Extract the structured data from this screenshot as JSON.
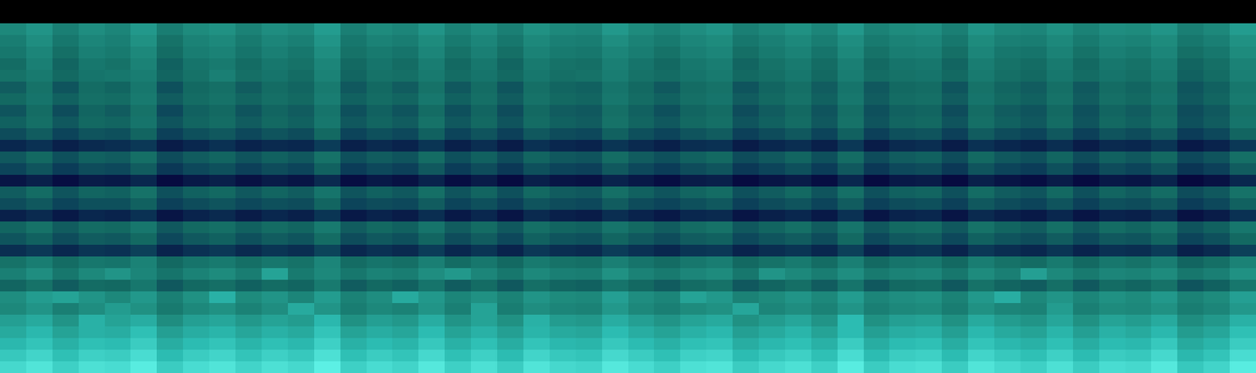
{
  "chart_data": {
    "type": "heatmap",
    "tick_labels": false,
    "grid": false,
    "cells": [
      [
        0,
        0,
        0,
        0,
        0,
        0,
        0,
        0,
        0,
        0,
        0,
        0,
        0,
        0,
        0,
        0,
        0,
        0,
        0,
        0,
        0,
        0,
        0,
        0,
        0,
        0,
        0,
        0,
        0,
        0,
        0,
        0,
        0,
        0,
        0,
        0,
        0,
        0,
        0,
        0,
        0,
        0,
        0,
        0,
        0,
        0,
        0,
        0
      ],
      [
        0,
        0,
        0,
        0,
        0,
        0,
        0,
        0,
        0,
        0,
        0,
        0,
        0,
        0,
        0,
        0,
        0,
        0,
        0,
        0,
        0,
        0,
        0,
        0,
        0,
        0,
        0,
        0,
        0,
        0,
        0,
        0,
        0,
        0,
        0,
        0,
        0,
        0,
        0,
        0,
        0,
        0,
        0,
        0,
        0,
        0,
        0,
        0
      ],
      [
        58,
        62,
        55,
        60,
        57,
        63,
        54,
        59,
        61,
        56,
        60,
        58,
        64,
        55,
        59,
        57,
        62,
        56,
        60,
        55,
        61,
        58,
        57,
        63,
        59,
        56,
        60,
        62,
        55,
        58,
        61,
        57,
        63,
        56,
        59,
        60,
        55,
        62,
        58,
        57,
        61,
        56,
        60,
        59,
        62,
        55,
        58,
        64
      ],
      [
        54,
        60,
        52,
        57,
        55,
        61,
        50,
        56,
        58,
        53,
        57,
        55,
        62,
        52,
        56,
        54,
        59,
        53,
        57,
        52,
        58,
        55,
        54,
        60,
        56,
        53,
        57,
        59,
        52,
        55,
        58,
        54,
        60,
        53,
        56,
        57,
        52,
        59,
        55,
        54,
        58,
        53,
        57,
        56,
        59,
        52,
        55,
        61
      ],
      [
        52,
        57,
        49,
        55,
        53,
        58,
        48,
        54,
        56,
        51,
        55,
        52,
        60,
        50,
        53,
        51,
        57,
        50,
        55,
        49,
        56,
        53,
        52,
        57,
        54,
        50,
        55,
        57,
        49,
        53,
        56,
        51,
        58,
        50,
        54,
        55,
        49,
        57,
        52,
        51,
        56,
        50,
        55,
        53,
        57,
        49,
        52,
        59
      ],
      [
        48,
        55,
        46,
        52,
        50,
        56,
        45,
        51,
        53,
        48,
        52,
        50,
        57,
        47,
        51,
        48,
        54,
        47,
        52,
        46,
        53,
        50,
        49,
        55,
        51,
        47,
        52,
        54,
        46,
        50,
        53,
        48,
        55,
        47,
        51,
        52,
        46,
        54,
        50,
        48,
        53,
        47,
        52,
        50,
        54,
        46,
        49,
        56
      ],
      [
        50,
        53,
        47,
        51,
        52,
        54,
        46,
        50,
        55,
        49,
        51,
        48,
        56,
        46,
        50,
        49,
        53,
        48,
        51,
        47,
        52,
        49,
        50,
        54,
        50,
        48,
        51,
        53,
        47,
        49,
        52,
        47,
        54,
        48,
        50,
        51,
        47,
        53,
        49,
        47,
        52,
        48,
        51,
        49,
        53,
        45,
        48,
        55
      ],
      [
        44,
        50,
        42,
        48,
        46,
        52,
        41,
        47,
        49,
        44,
        48,
        46,
        53,
        43,
        47,
        44,
        50,
        43,
        48,
        42,
        49,
        46,
        45,
        51,
        47,
        43,
        48,
        50,
        42,
        46,
        49,
        44,
        51,
        43,
        47,
        48,
        42,
        50,
        46,
        44,
        49,
        43,
        48,
        46,
        50,
        42,
        45,
        52
      ],
      [
        47,
        51,
        45,
        49,
        48,
        53,
        44,
        48,
        50,
        46,
        49,
        47,
        54,
        45,
        48,
        46,
        52,
        45,
        49,
        44,
        50,
        47,
        46,
        52,
        48,
        45,
        49,
        51,
        44,
        47,
        50,
        45,
        52,
        44,
        48,
        49,
        44,
        51,
        47,
        45,
        50,
        44,
        49,
        47,
        51,
        43,
        46,
        53
      ],
      [
        42,
        48,
        40,
        46,
        44,
        50,
        39,
        45,
        47,
        42,
        46,
        44,
        51,
        41,
        45,
        42,
        48,
        41,
        46,
        40,
        47,
        44,
        43,
        49,
        45,
        41,
        46,
        48,
        40,
        44,
        47,
        42,
        49,
        41,
        45,
        46,
        40,
        48,
        44,
        42,
        47,
        41,
        46,
        44,
        48,
        40,
        43,
        50
      ],
      [
        45,
        49,
        43,
        47,
        46,
        51,
        42,
        46,
        48,
        44,
        47,
        45,
        52,
        43,
        46,
        44,
        50,
        43,
        47,
        42,
        48,
        45,
        44,
        50,
        46,
        43,
        47,
        49,
        42,
        45,
        48,
        43,
        50,
        42,
        46,
        47,
        42,
        49,
        45,
        43,
        48,
        42,
        47,
        45,
        49,
        41,
        44,
        51
      ],
      [
        40,
        44,
        38,
        42,
        41,
        46,
        37,
        41,
        43,
        39,
        42,
        40,
        47,
        38,
        41,
        39,
        45,
        38,
        42,
        37,
        43,
        40,
        39,
        45,
        41,
        38,
        42,
        44,
        37,
        40,
        43,
        38,
        45,
        37,
        41,
        42,
        37,
        44,
        40,
        38,
        43,
        37,
        42,
        40,
        44,
        36,
        39,
        46
      ],
      [
        30,
        33,
        28,
        31,
        32,
        35,
        27,
        30,
        33,
        29,
        31,
        30,
        36,
        28,
        31,
        29,
        34,
        28,
        32,
        27,
        33,
        30,
        29,
        34,
        31,
        28,
        32,
        33,
        27,
        30,
        32,
        28,
        35,
        27,
        31,
        32,
        27,
        33,
        30,
        28,
        32,
        27,
        31,
        30,
        34,
        26,
        29,
        35
      ],
      [
        43,
        47,
        41,
        45,
        44,
        49,
        40,
        44,
        46,
        42,
        45,
        43,
        50,
        41,
        44,
        42,
        48,
        41,
        45,
        40,
        46,
        43,
        42,
        48,
        44,
        41,
        45,
        47,
        40,
        43,
        46,
        41,
        48,
        40,
        44,
        45,
        40,
        47,
        43,
        41,
        46,
        40,
        45,
        43,
        47,
        39,
        42,
        49
      ],
      [
        38,
        42,
        36,
        40,
        39,
        44,
        35,
        39,
        41,
        37,
        40,
        38,
        45,
        36,
        39,
        37,
        43,
        36,
        40,
        35,
        41,
        38,
        37,
        43,
        39,
        36,
        40,
        42,
        35,
        38,
        41,
        36,
        43,
        35,
        39,
        40,
        35,
        42,
        38,
        36,
        41,
        35,
        40,
        38,
        42,
        34,
        37,
        44
      ],
      [
        25,
        28,
        23,
        27,
        26,
        30,
        22,
        26,
        28,
        24,
        27,
        25,
        31,
        23,
        26,
        24,
        29,
        23,
        27,
        22,
        28,
        25,
        24,
        29,
        26,
        23,
        27,
        28,
        22,
        25,
        27,
        23,
        30,
        22,
        26,
        27,
        22,
        28,
        25,
        23,
        27,
        22,
        26,
        25,
        29,
        21,
        24,
        30
      ],
      [
        44,
        48,
        42,
        46,
        45,
        50,
        41,
        45,
        47,
        43,
        46,
        44,
        51,
        42,
        45,
        43,
        49,
        42,
        46,
        41,
        47,
        44,
        43,
        49,
        45,
        42,
        46,
        48,
        41,
        44,
        47,
        42,
        49,
        41,
        45,
        46,
        41,
        48,
        44,
        42,
        47,
        41,
        46,
        44,
        48,
        40,
        43,
        50
      ],
      [
        40,
        43,
        38,
        41,
        41,
        45,
        37,
        40,
        42,
        39,
        41,
        40,
        46,
        38,
        40,
        39,
        44,
        38,
        41,
        37,
        42,
        40,
        39,
        44,
        40,
        38,
        41,
        43,
        37,
        40,
        42,
        38,
        44,
        37,
        40,
        41,
        37,
        43,
        40,
        38,
        42,
        37,
        41,
        40,
        43,
        36,
        39,
        45
      ],
      [
        28,
        31,
        26,
        30,
        29,
        33,
        25,
        29,
        31,
        27,
        30,
        28,
        34,
        26,
        29,
        27,
        32,
        26,
        30,
        25,
        31,
        28,
        27,
        32,
        29,
        26,
        30,
        31,
        25,
        28,
        30,
        26,
        33,
        25,
        29,
        30,
        25,
        31,
        28,
        26,
        30,
        25,
        29,
        28,
        32,
        24,
        27,
        33
      ],
      [
        46,
        50,
        44,
        48,
        47,
        52,
        43,
        47,
        49,
        45,
        48,
        46,
        53,
        44,
        47,
        45,
        51,
        44,
        48,
        43,
        49,
        46,
        45,
        51,
        47,
        44,
        48,
        50,
        43,
        46,
        49,
        44,
        51,
        43,
        47,
        48,
        43,
        50,
        46,
        44,
        49,
        43,
        48,
        46,
        50,
        42,
        45,
        52
      ],
      [
        42,
        45,
        40,
        44,
        43,
        47,
        39,
        43,
        45,
        41,
        44,
        42,
        48,
        40,
        43,
        41,
        46,
        40,
        44,
        39,
        45,
        42,
        41,
        46,
        43,
        40,
        44,
        45,
        39,
        42,
        44,
        40,
        47,
        39,
        43,
        44,
        39,
        45,
        42,
        40,
        44,
        39,
        43,
        42,
        46,
        38,
        41,
        47
      ],
      [
        32,
        35,
        30,
        34,
        33,
        37,
        29,
        33,
        35,
        31,
        34,
        32,
        38,
        30,
        33,
        31,
        36,
        30,
        34,
        29,
        35,
        32,
        31,
        36,
        33,
        30,
        34,
        35,
        29,
        32,
        34,
        30,
        37,
        29,
        33,
        34,
        29,
        35,
        32,
        30,
        34,
        29,
        33,
        32,
        36,
        28,
        31,
        37
      ],
      [
        50,
        54,
        48,
        52,
        51,
        56,
        47,
        51,
        53,
        49,
        52,
        50,
        57,
        48,
        51,
        49,
        55,
        48,
        52,
        47,
        53,
        50,
        49,
        55,
        51,
        48,
        52,
        54,
        47,
        50,
        53,
        48,
        55,
        47,
        51,
        52,
        47,
        54,
        50,
        48,
        53,
        47,
        52,
        50,
        54,
        46,
        49,
        56
      ],
      [
        55,
        60,
        52,
        58,
        62,
        57,
        51,
        56,
        59,
        54,
        66,
        53,
        58,
        52,
        56,
        54,
        60,
        63,
        57,
        52,
        58,
        55,
        54,
        61,
        56,
        53,
        57,
        59,
        52,
        62,
        58,
        54,
        60,
        53,
        56,
        57,
        52,
        59,
        55,
        65,
        58,
        53,
        57,
        56,
        59,
        52,
        55,
        61
      ],
      [
        46,
        50,
        44,
        48,
        47,
        52,
        43,
        47,
        49,
        45,
        48,
        46,
        53,
        44,
        47,
        45,
        51,
        44,
        48,
        43,
        49,
        46,
        45,
        51,
        47,
        44,
        48,
        50,
        43,
        46,
        49,
        44,
        51,
        43,
        47,
        48,
        43,
        50,
        46,
        44,
        49,
        43,
        48,
        46,
        50,
        42,
        45,
        52
      ],
      [
        60,
        64,
        66,
        62,
        58,
        63,
        55,
        61,
        70,
        59,
        62,
        57,
        64,
        56,
        60,
        68,
        63,
        57,
        61,
        56,
        62,
        59,
        58,
        65,
        60,
        57,
        66,
        63,
        56,
        59,
        62,
        58,
        64,
        57,
        60,
        61,
        56,
        63,
        69,
        58,
        62,
        57,
        61,
        59,
        63,
        56,
        59,
        65
      ],
      [
        58,
        62,
        55,
        60,
        64,
        61,
        53,
        58,
        61,
        56,
        60,
        68,
        62,
        54,
        58,
        56,
        62,
        55,
        66,
        54,
        60,
        57,
        56,
        63,
        58,
        55,
        59,
        61,
        67,
        57,
        60,
        56,
        62,
        55,
        58,
        59,
        54,
        61,
        57,
        56,
        64,
        55,
        59,
        58,
        61,
        54,
        57,
        63
      ],
      [
        65,
        68,
        62,
        70,
        66,
        69,
        60,
        65,
        67,
        63,
        66,
        64,
        72,
        61,
        65,
        63,
        69,
        62,
        66,
        61,
        70,
        64,
        63,
        69,
        65,
        62,
        66,
        68,
        61,
        64,
        67,
        62,
        73,
        61,
        65,
        66,
        61,
        68,
        64,
        62,
        67,
        61,
        66,
        64,
        68,
        60,
        63,
        70
      ],
      [
        68,
        72,
        66,
        70,
        69,
        74,
        65,
        69,
        71,
        67,
        70,
        68,
        75,
        66,
        69,
        67,
        73,
        66,
        70,
        65,
        71,
        68,
        67,
        73,
        69,
        66,
        70,
        72,
        65,
        68,
        71,
        66,
        73,
        65,
        69,
        70,
        65,
        72,
        68,
        66,
        71,
        65,
        70,
        68,
        72,
        64,
        67,
        74
      ],
      [
        72,
        75,
        70,
        74,
        73,
        77,
        69,
        73,
        75,
        71,
        74,
        72,
        78,
        70,
        73,
        71,
        76,
        70,
        74,
        69,
        75,
        72,
        71,
        76,
        73,
        70,
        74,
        75,
        69,
        72,
        74,
        70,
        77,
        69,
        73,
        74,
        69,
        75,
        72,
        70,
        74,
        69,
        73,
        72,
        76,
        68,
        71,
        77
      ],
      [
        76,
        79,
        74,
        78,
        77,
        81,
        73,
        77,
        79,
        75,
        78,
        76,
        82,
        74,
        77,
        75,
        80,
        74,
        78,
        73,
        79,
        76,
        75,
        80,
        77,
        74,
        78,
        79,
        73,
        76,
        78,
        74,
        81,
        73,
        77,
        78,
        73,
        79,
        76,
        74,
        78,
        73,
        77,
        76,
        80,
        72,
        75,
        81
      ],
      [
        80,
        83,
        78,
        82,
        81,
        85,
        77,
        81,
        83,
        79,
        82,
        80,
        86,
        78,
        81,
        79,
        84,
        78,
        82,
        77,
        83,
        80,
        79,
        84,
        81,
        78,
        82,
        83,
        77,
        80,
        82,
        78,
        85,
        77,
        81,
        82,
        77,
        83,
        80,
        78,
        82,
        77,
        81,
        80,
        84,
        76,
        79,
        85
      ]
    ]
  }
}
